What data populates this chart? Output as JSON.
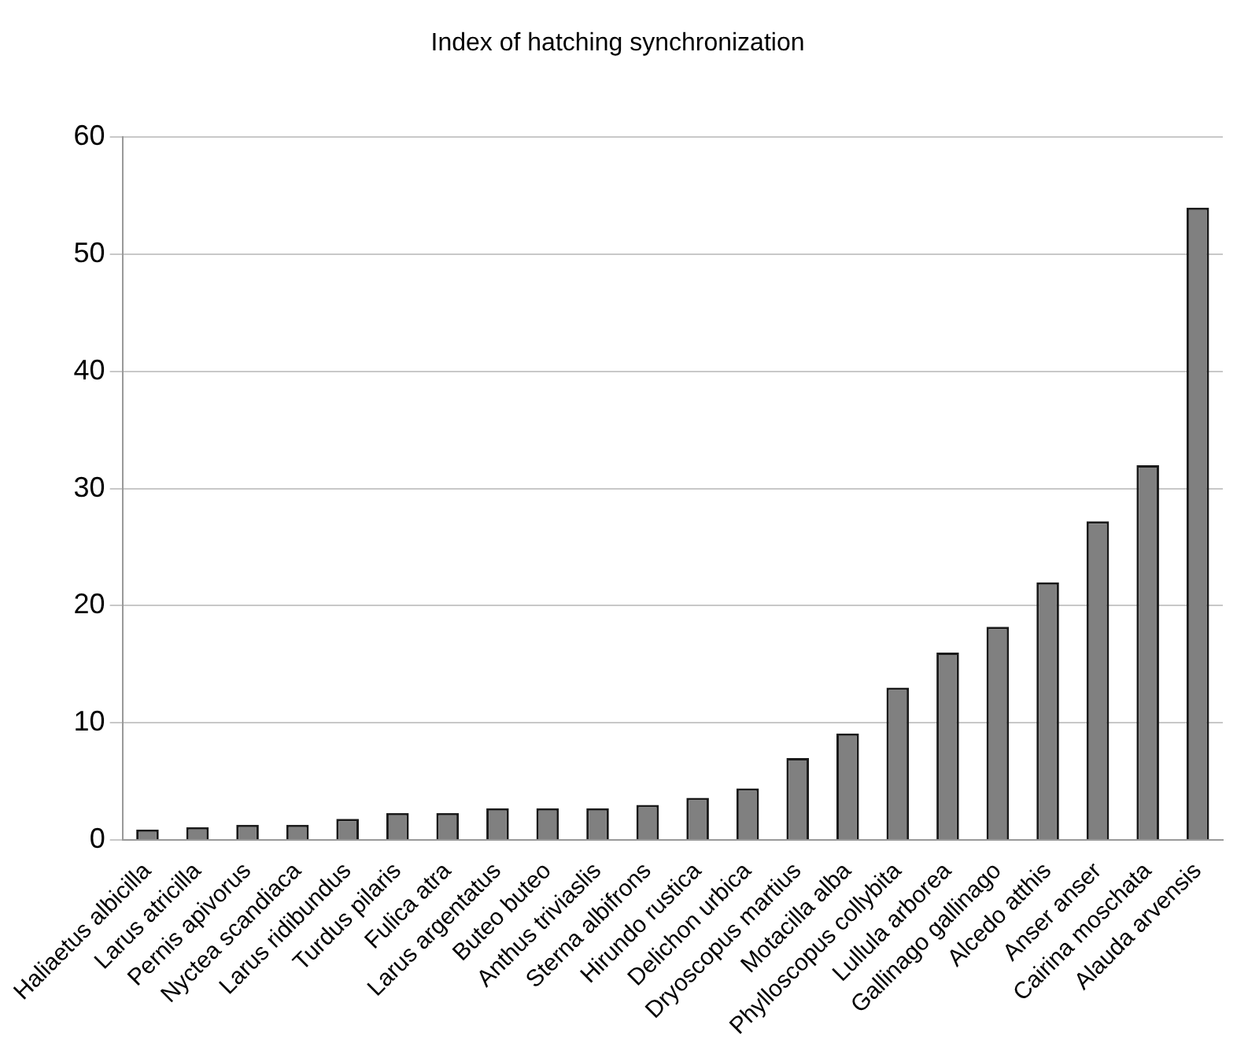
{
  "chart_data": {
    "type": "bar",
    "title": "Index of hatching synchronization",
    "categories": [
      "Haliaetus albicilla",
      "Larus atricilla",
      "Pernis apivorus",
      "Nyctea scandiaca",
      "Larus ridibundus",
      "Turdus pilaris",
      "Fulica atra",
      "Larus argentatus",
      "Buteo buteo",
      "Anthus triviaslis",
      "Sterna albifrons",
      "Hirundo rustica",
      "Delichon urbica",
      "Dryoscopus martius",
      "Motacilla alba",
      "Phylloscopus collybita",
      "Lullula arborea",
      "Gallinago gallinago",
      "Alcedo atthis",
      "Anser anser",
      "Cairina moschata",
      "Alauda arvensis"
    ],
    "values": [
      0.9,
      1.1,
      1.3,
      1.3,
      1.8,
      2.3,
      2.3,
      2.7,
      2.7,
      2.7,
      3,
      3.6,
      4.4,
      7,
      9.1,
      13,
      16,
      18.2,
      22,
      27.2,
      32,
      54
    ],
    "color": "#808080",
    "ylim": [
      0,
      60
    ],
    "yticks": [
      0,
      10,
      20,
      30,
      40,
      50,
      60
    ],
    "grid": "y",
    "legend": false
  }
}
